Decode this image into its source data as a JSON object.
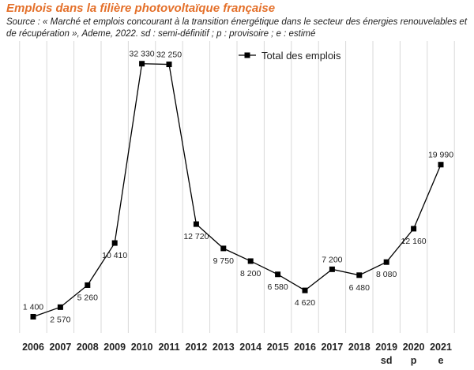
{
  "chart_data": {
    "type": "line",
    "title": "Emplois dans la filière photovoltaïque française",
    "subtitle": "Source : « Marché et emplois concourant à la transition énergétique dans le secteur des énergies renouvelables et de récupération », Ademe, 2022. sd : semi-définitif ; p : provisoire ; e : estimé",
    "categories": [
      "2006",
      "2007",
      "2008",
      "2009",
      "2010",
      "2011",
      "2012",
      "2013",
      "2014",
      "2015",
      "2016",
      "2017",
      "2018",
      "2019",
      "2020",
      "2021"
    ],
    "category_sublabels": [
      "",
      "",
      "",
      "",
      "",
      "",
      "",
      "",
      "",
      "",
      "",
      "",
      "",
      "sd",
      "p",
      "e"
    ],
    "series": [
      {
        "name": "Total des emplois",
        "values": [
          1400,
          2570,
          5260,
          10410,
          32330,
          32250,
          12720,
          9750,
          8200,
          6580,
          4620,
          7200,
          6480,
          8080,
          12160,
          19990
        ],
        "labels": [
          "1 400",
          "2 570",
          "5 260",
          "10 410",
          "32 330",
          "32 250",
          "12 720",
          "9 750",
          "8 200",
          "6 580",
          "4 620",
          "7 200",
          "6 480",
          "8 080",
          "12 160",
          "19 990"
        ],
        "label_positions": [
          "above",
          "below",
          "below",
          "below",
          "above",
          "above",
          "below",
          "below",
          "below",
          "below",
          "below",
          "above",
          "below",
          "below",
          "below",
          "above"
        ]
      }
    ],
    "ylim": [
      0,
      33500
    ],
    "grid": "vertical",
    "legend": "top-right",
    "colors": {
      "line": "#000000",
      "grid": "#d9d9d9",
      "title": "#e4702a"
    }
  }
}
